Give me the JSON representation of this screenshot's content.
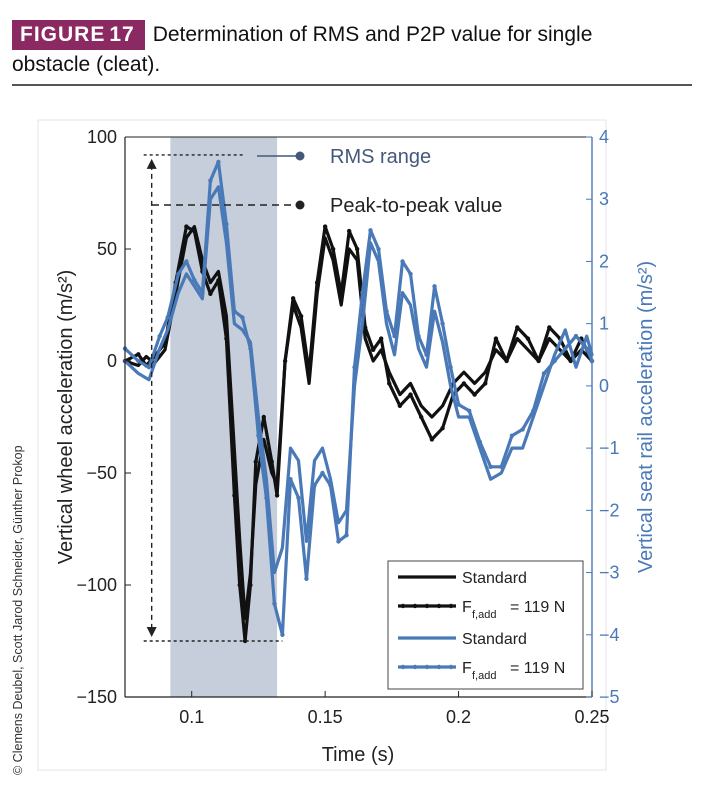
{
  "figure": {
    "badge_word": "FIGURE",
    "badge_number": "17",
    "caption_line1": "Determination of RMS and P2P value for single",
    "caption_line2": "obstacle (cleat)."
  },
  "credit": "© Clemens Deubel, Scott Jarod Schneider, Günther Prokop",
  "colors": {
    "badge": "#8b2a62",
    "black_series": "#111111",
    "blue_series": "#4a79b8",
    "rms_band": "#bcc6d6",
    "right_axis": "#4a79b8"
  },
  "chart_data": {
    "type": "line",
    "xlabel": "Time (s)",
    "ylabel_left": "Vertical wheel acceleration (m/s²)",
    "ylabel_right": "Vertical seat rail acceleration (m/s²)",
    "xlim": [
      0.075,
      0.25
    ],
    "ylim_left": [
      -150,
      100
    ],
    "ylim_right": [
      -5,
      4
    ],
    "xticks": [
      0.1,
      0.15,
      0.2,
      0.25
    ],
    "xtick_labels": [
      "0.1",
      "0.15",
      "0.2",
      "0.25"
    ],
    "yticks_left": [
      -150,
      -100,
      -50,
      0,
      50,
      100
    ],
    "ytick_labels_left": [
      "−150",
      "−100",
      "−50",
      "0",
      "50",
      "100"
    ],
    "yticks_right": [
      -5,
      -4,
      -3,
      -2,
      -1,
      0,
      1,
      2,
      3,
      4
    ],
    "ytick_labels_right": [
      "−5",
      "−4",
      "−3",
      "−2",
      "−1",
      "0",
      "1",
      "2",
      "3",
      "4"
    ],
    "rms_range": [
      0.092,
      0.132
    ],
    "p2p": {
      "x": 0.085,
      "top": 92,
      "bottom": -125
    },
    "annotations": [
      {
        "text": "RMS range",
        "style": "solid"
      },
      {
        "text": "Peak-to-peak value",
        "style": "dashed"
      }
    ],
    "legend": {
      "placement": "bottom-right",
      "entries": [
        "Standard",
        "F",
        "= 119 N",
        "Standard",
        "F",
        "= 119 N"
      ],
      "subscript": "f,add"
    },
    "series": [
      {
        "axis": "left",
        "color": "black",
        "markers": false,
        "x": [
          0.075,
          0.08,
          0.083,
          0.086,
          0.09,
          0.094,
          0.098,
          0.101,
          0.104,
          0.107,
          0.11,
          0.113,
          0.116,
          0.118,
          0.12,
          0.122,
          0.124,
          0.127,
          0.13,
          0.132,
          0.135,
          0.138,
          0.141,
          0.144,
          0.147,
          0.15,
          0.153,
          0.156,
          0.159,
          0.162,
          0.165,
          0.168,
          0.171,
          0.174,
          0.178,
          0.182,
          0.186,
          0.19,
          0.194,
          0.198,
          0.202,
          0.206,
          0.21,
          0.214,
          0.218,
          0.222,
          0.226,
          0.23,
          0.234,
          0.238,
          0.242,
          0.246,
          0.25
        ],
        "y": [
          0,
          -2,
          2,
          -1,
          5,
          30,
          55,
          60,
          45,
          35,
          40,
          20,
          -40,
          -80,
          -115,
          -95,
          -55,
          -35,
          -50,
          -55,
          0,
          25,
          15,
          -10,
          30,
          55,
          45,
          25,
          50,
          45,
          10,
          0,
          5,
          -5,
          -15,
          -10,
          -20,
          -25,
          -20,
          -10,
          -5,
          -10,
          -5,
          5,
          0,
          10,
          5,
          0,
          10,
          5,
          0,
          5,
          0
        ]
      },
      {
        "axis": "left",
        "color": "black",
        "markers": true,
        "x": [
          0.075,
          0.08,
          0.083,
          0.086,
          0.09,
          0.094,
          0.098,
          0.101,
          0.104,
          0.107,
          0.11,
          0.113,
          0.116,
          0.118,
          0.12,
          0.122,
          0.124,
          0.127,
          0.13,
          0.132,
          0.135,
          0.138,
          0.141,
          0.144,
          0.147,
          0.15,
          0.153,
          0.156,
          0.159,
          0.162,
          0.165,
          0.168,
          0.171,
          0.174,
          0.178,
          0.182,
          0.186,
          0.19,
          0.194,
          0.198,
          0.202,
          0.206,
          0.21,
          0.214,
          0.218,
          0.222,
          0.226,
          0.23,
          0.234,
          0.238,
          0.242,
          0.246,
          0.25
        ],
        "y": [
          0,
          3,
          -2,
          2,
          8,
          35,
          60,
          58,
          40,
          30,
          36,
          10,
          -60,
          -100,
          -125,
          -100,
          -45,
          -25,
          -45,
          -60,
          0,
          28,
          20,
          -5,
          35,
          60,
          50,
          30,
          58,
          50,
          15,
          5,
          10,
          -10,
          -20,
          -15,
          -25,
          -35,
          -30,
          -15,
          -10,
          -15,
          -10,
          10,
          0,
          15,
          10,
          0,
          15,
          10,
          0,
          10,
          0
        ]
      },
      {
        "axis": "right",
        "color": "blue",
        "markers": false,
        "x": [
          0.075,
          0.08,
          0.084,
          0.088,
          0.091,
          0.095,
          0.098,
          0.101,
          0.104,
          0.107,
          0.11,
          0.113,
          0.116,
          0.119,
          0.122,
          0.125,
          0.128,
          0.131,
          0.134,
          0.137,
          0.14,
          0.143,
          0.146,
          0.149,
          0.152,
          0.155,
          0.158,
          0.161,
          0.164,
          0.167,
          0.17,
          0.173,
          0.176,
          0.179,
          0.182,
          0.185,
          0.188,
          0.191,
          0.194,
          0.197,
          0.2,
          0.204,
          0.208,
          0.212,
          0.216,
          0.22,
          0.224,
          0.228,
          0.232,
          0.236,
          0.24,
          0.244,
          0.248,
          0.25
        ],
        "y": [
          0.4,
          0.2,
          0.1,
          0.6,
          0.9,
          1.5,
          1.8,
          1.6,
          1.4,
          3.0,
          3.2,
          2.3,
          1.0,
          0.9,
          0.7,
          -0.5,
          -1.5,
          -3.0,
          -2.6,
          -1.0,
          -1.2,
          -2.5,
          -1.2,
          -1.0,
          -1.5,
          -2.2,
          -2.0,
          0.0,
          1.0,
          2.3,
          2.0,
          1.0,
          0.5,
          1.5,
          1.3,
          0.6,
          0.3,
          1.2,
          0.7,
          0.0,
          -0.5,
          -0.5,
          -1.0,
          -1.5,
          -1.4,
          -1.0,
          -1.0,
          -0.5,
          0.0,
          0.5,
          0.9,
          0.3,
          0.8,
          0.5
        ]
      },
      {
        "axis": "right",
        "color": "blue",
        "markers": true,
        "x": [
          0.075,
          0.08,
          0.084,
          0.088,
          0.091,
          0.095,
          0.098,
          0.101,
          0.104,
          0.107,
          0.11,
          0.113,
          0.116,
          0.119,
          0.122,
          0.125,
          0.128,
          0.131,
          0.134,
          0.137,
          0.14,
          0.143,
          0.146,
          0.149,
          0.152,
          0.155,
          0.158,
          0.161,
          0.164,
          0.167,
          0.17,
          0.173,
          0.176,
          0.179,
          0.182,
          0.185,
          0.188,
          0.191,
          0.194,
          0.197,
          0.2,
          0.204,
          0.208,
          0.212,
          0.216,
          0.22,
          0.224,
          0.228,
          0.232,
          0.236,
          0.24,
          0.244,
          0.248,
          0.25
        ],
        "y": [
          0.6,
          0.4,
          0.3,
          0.8,
          1.1,
          1.8,
          2.0,
          1.7,
          1.5,
          3.3,
          3.6,
          2.6,
          1.2,
          1.1,
          0.6,
          -0.8,
          -1.8,
          -3.5,
          -4.0,
          -1.5,
          -1.8,
          -3.1,
          -1.6,
          -1.4,
          -1.6,
          -2.5,
          -2.4,
          0.3,
          1.5,
          2.5,
          2.2,
          1.2,
          0.8,
          2.0,
          1.8,
          0.8,
          0.5,
          1.6,
          1.0,
          0.3,
          -0.3,
          -0.4,
          -0.9,
          -1.3,
          -1.3,
          -0.8,
          -0.7,
          -0.4,
          0.2,
          0.4,
          0.6,
          0.8,
          0.6,
          0.4
        ]
      }
    ]
  }
}
